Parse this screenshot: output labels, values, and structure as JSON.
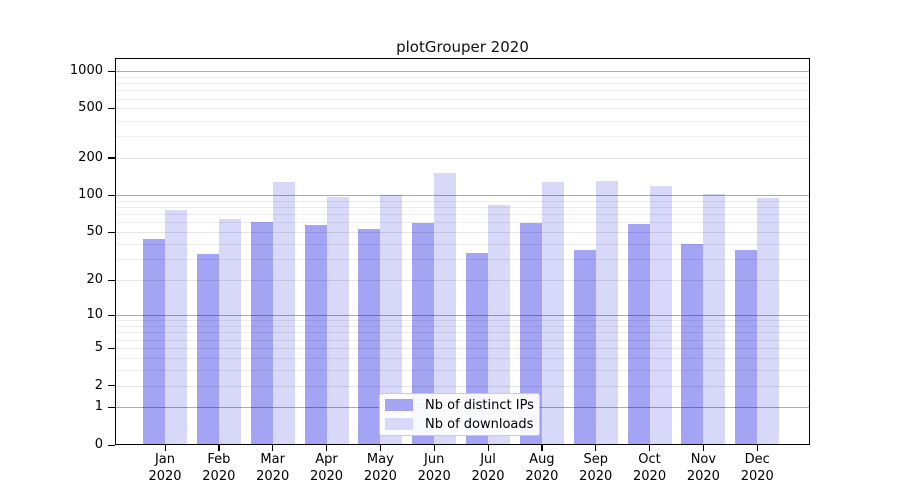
{
  "title": "plotGrouper 2020",
  "chart_data": {
    "type": "bar",
    "title": "plotGrouper 2020",
    "scale": "log1p",
    "grid": true,
    "legend_position": "lower center",
    "categories": [
      "Jan 2020",
      "Feb 2020",
      "Mar 2020",
      "Apr 2020",
      "May 2020",
      "Jun 2020",
      "Jul 2020",
      "Aug 2020",
      "Sep 2020",
      "Oct 2020",
      "Nov 2020",
      "Dec 2020"
    ],
    "series": [
      {
        "name": "Nb of distinct IPs",
        "color": "#a4a4f4",
        "values": [
          44,
          33,
          60,
          57,
          53,
          59,
          34,
          59,
          36,
          58,
          40,
          36
        ]
      },
      {
        "name": "Nb of downloads",
        "color": "#d8d8f9",
        "values": [
          76,
          64,
          127,
          97,
          100,
          150,
          83,
          128,
          130,
          118,
          102,
          95
        ]
      }
    ],
    "y_ticks": [
      0,
      1,
      2,
      5,
      10,
      20,
      50,
      100,
      200,
      500,
      1000
    ],
    "y_major_gridlines": [
      1,
      10,
      100,
      1000
    ],
    "y_minor_gridlines": [
      3,
      4,
      6,
      7,
      8,
      9,
      30,
      40,
      60,
      70,
      80,
      90,
      300,
      400,
      600,
      700,
      800,
      900
    ],
    "ylim": [
      0,
      1260
    ],
    "xlabel": "",
    "ylabel": ""
  },
  "legend": {
    "items": [
      {
        "label": "Nb of distinct IPs",
        "color": "#a4a4f4"
      },
      {
        "label": "Nb of downloads",
        "color": "#d8d8f9"
      }
    ]
  },
  "colors": {
    "background": "#ffffff",
    "axis": "#000000",
    "grid_major": "#ababab",
    "grid_minor": "#ececec",
    "legend_border": "#cccccc"
  }
}
